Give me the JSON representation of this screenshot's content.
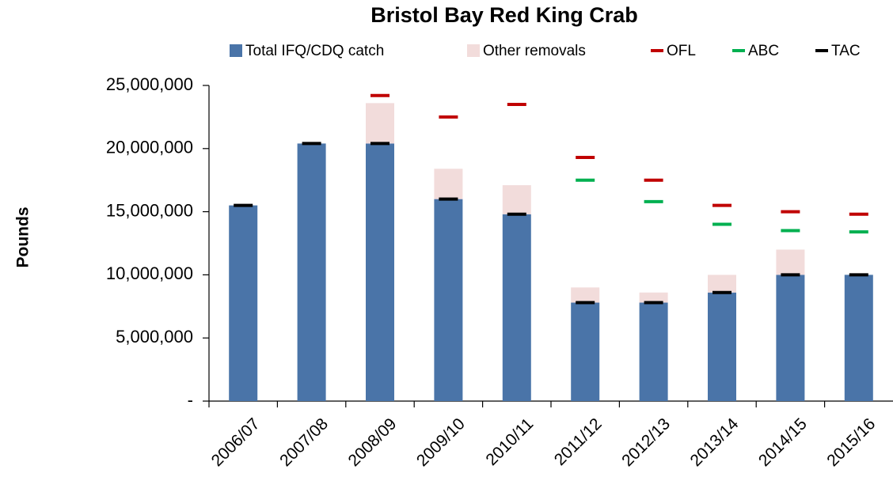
{
  "chart_data": {
    "type": "bar",
    "title": "Bristol Bay Red King Crab",
    "y_label": "Pounds",
    "categories": [
      "2006/07",
      "2007/08",
      "2008/09",
      "2009/10",
      "2010/11",
      "2011/12",
      "2012/13",
      "2013/14",
      "2014/15",
      "2015/16"
    ],
    "series": [
      {
        "name": "Total IFQ/CDQ catch",
        "type": "bar",
        "color": "#4a74a8",
        "values": [
          15500000,
          20400000,
          20400000,
          16000000,
          14800000,
          7800000,
          7800000,
          8600000,
          10000000,
          10000000
        ]
      },
      {
        "name": "Other removals",
        "type": "bar",
        "color": "#f2dcdb",
        "values": [
          null,
          null,
          3200000,
          2400000,
          2300000,
          1200000,
          800000,
          1400000,
          2000000,
          null
        ]
      },
      {
        "name": "OFL",
        "type": "marker",
        "color": "#c00000",
        "values": [
          null,
          null,
          24200000,
          22500000,
          23500000,
          19300000,
          17500000,
          15500000,
          15000000,
          14800000
        ]
      },
      {
        "name": "ABC",
        "type": "marker",
        "color": "#00b050",
        "values": [
          null,
          null,
          null,
          null,
          null,
          17500000,
          15800000,
          14000000,
          13500000,
          13400000
        ]
      },
      {
        "name": "TAC",
        "type": "marker",
        "color": "#000000",
        "values": [
          15500000,
          20400000,
          20400000,
          16000000,
          14800000,
          7800000,
          7800000,
          8600000,
          10000000,
          10000000
        ]
      }
    ],
    "stacked": true,
    "ylim": [
      0,
      25000000
    ],
    "yticks": [
      {
        "value": 0,
        "label": "-"
      },
      {
        "value": 5000000,
        "label": "5,000,000"
      },
      {
        "value": 10000000,
        "label": "10,000,000"
      },
      {
        "value": 15000000,
        "label": "15,000,000"
      },
      {
        "value": 20000000,
        "label": "20,000,000"
      },
      {
        "value": 25000000,
        "label": "25,000,000"
      }
    ],
    "grid": false,
    "legend": "top"
  }
}
